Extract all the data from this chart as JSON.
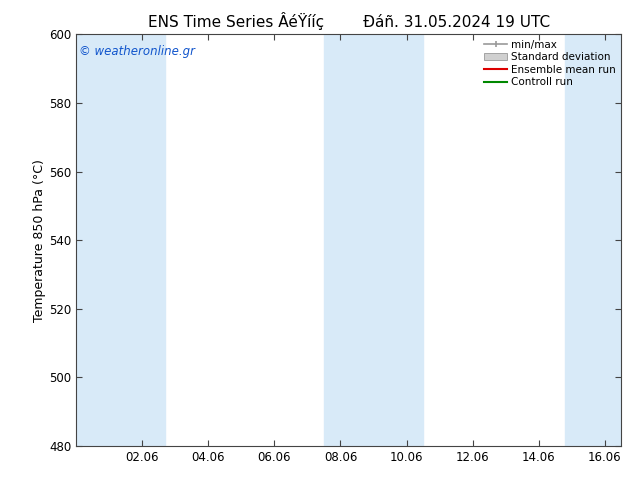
{
  "title": "ENS Time Series ÂéŸííç        Đáñ. 31.05.2024 19 UTC",
  "ylabel": "Temperature 850 hPa (°C)",
  "ylim": [
    480,
    600
  ],
  "yticks": [
    480,
    500,
    520,
    540,
    560,
    580,
    600
  ],
  "xlim": [
    0,
    16.5
  ],
  "xtick_positions": [
    2,
    4,
    6,
    8,
    10,
    12,
    14,
    16
  ],
  "xtick_labels": [
    "02.06",
    "04.06",
    "06.06",
    "08.06",
    "10.06",
    "12.06",
    "14.06",
    "16.06"
  ],
  "band_ranges": [
    [
      0,
      1.5
    ],
    [
      1.5,
      2.7
    ],
    [
      7.5,
      9.0
    ],
    [
      9.0,
      10.5
    ],
    [
      14.8,
      16.5
    ]
  ],
  "band_color": "#d8eaf8",
  "watermark": "© weatheronline.gr",
  "legend_labels": [
    "min/max",
    "Standard deviation",
    "Ensemble mean run",
    "Controll run"
  ],
  "background_color": "#ffffff",
  "title_fontsize": 11,
  "axis_fontsize": 9,
  "tick_fontsize": 8.5
}
